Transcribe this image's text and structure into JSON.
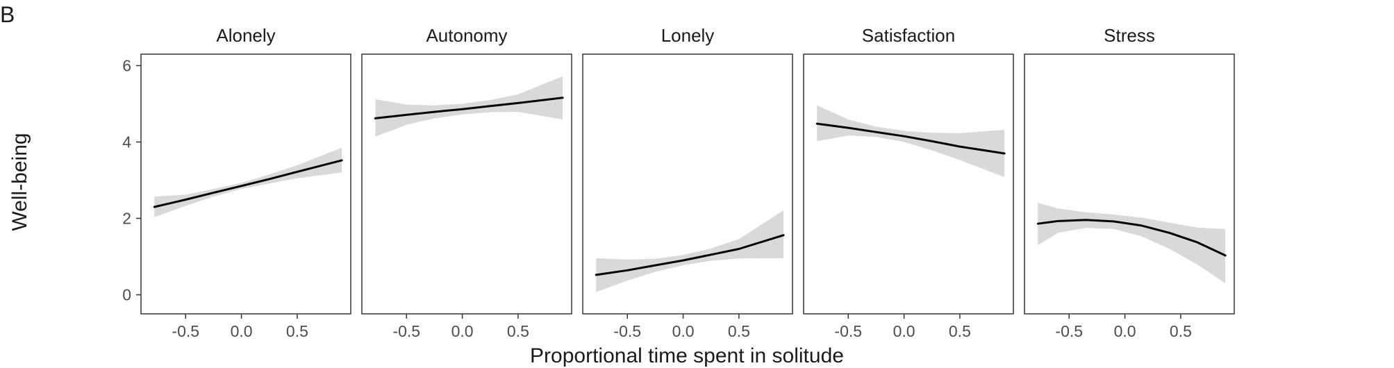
{
  "panel_label": "B",
  "colors": {
    "line": "#000000",
    "ribbon": "#d9d9d9",
    "border": "#333333",
    "text": "#1a1a1a",
    "tick_text": "#4d4d4d"
  },
  "chart_data": {
    "type": "line",
    "layout": "facets",
    "xlabel": "Proportional time spent in solitude",
    "ylabel": "Well-being",
    "xlim": [
      -0.9,
      0.98
    ],
    "ylim": [
      -0.5,
      6.3
    ],
    "xticks": [
      -0.5,
      0.0,
      0.5
    ],
    "xtick_labels": [
      "-0.5",
      "0.0",
      "0.5"
    ],
    "yticks": [
      0,
      2,
      4,
      6
    ],
    "ytick_labels": [
      "0",
      "2",
      "4",
      "6"
    ],
    "grid": false,
    "legend": "none",
    "series": [
      {
        "name": "Alonely",
        "x": [
          -0.78,
          -0.5,
          -0.25,
          0.0,
          0.25,
          0.5,
          0.9
        ],
        "y": [
          2.3,
          2.49,
          2.67,
          2.85,
          3.03,
          3.22,
          3.52
        ],
        "lower": [
          2.03,
          2.33,
          2.57,
          2.77,
          2.91,
          3.05,
          3.2
        ],
        "upper": [
          2.57,
          2.62,
          2.77,
          2.93,
          3.15,
          3.39,
          3.85
        ]
      },
      {
        "name": "Autonomy",
        "x": [
          -0.78,
          -0.5,
          -0.25,
          0.0,
          0.25,
          0.5,
          0.9
        ],
        "y": [
          4.62,
          4.71,
          4.79,
          4.86,
          4.94,
          5.02,
          5.16
        ],
        "lower": [
          4.14,
          4.45,
          4.62,
          4.72,
          4.78,
          4.79,
          4.59
        ],
        "upper": [
          5.12,
          4.98,
          4.96,
          5.0,
          5.1,
          5.25,
          5.72
        ]
      },
      {
        "name": "Lonely",
        "x": [
          -0.78,
          -0.5,
          -0.25,
          0.0,
          0.25,
          0.5,
          0.9
        ],
        "y": [
          0.52,
          0.64,
          0.77,
          0.9,
          1.05,
          1.2,
          1.56
        ],
        "lower": [
          0.07,
          0.37,
          0.6,
          0.77,
          0.89,
          0.95,
          0.96
        ],
        "upper": [
          0.96,
          0.92,
          0.94,
          1.04,
          1.21,
          1.46,
          2.21
        ]
      },
      {
        "name": "Satisfaction",
        "x": [
          -0.78,
          -0.5,
          -0.25,
          0.0,
          0.25,
          0.5,
          0.9
        ],
        "y": [
          4.48,
          4.37,
          4.26,
          4.15,
          4.02,
          3.88,
          3.7
        ],
        "lower": [
          4.02,
          4.17,
          4.13,
          4.0,
          3.78,
          3.53,
          3.08
        ],
        "upper": [
          4.96,
          4.59,
          4.4,
          4.29,
          4.24,
          4.23,
          4.32
        ]
      },
      {
        "name": "Stress",
        "x": [
          -0.78,
          -0.6,
          -0.35,
          -0.1,
          0.15,
          0.4,
          0.65,
          0.9
        ],
        "y": [
          1.86,
          1.93,
          1.96,
          1.92,
          1.81,
          1.62,
          1.37,
          1.03
        ],
        "lower": [
          1.3,
          1.62,
          1.75,
          1.72,
          1.53,
          1.2,
          0.79,
          0.3
        ],
        "upper": [
          2.41,
          2.26,
          2.16,
          2.1,
          2.02,
          1.89,
          1.76,
          1.72
        ]
      }
    ]
  }
}
